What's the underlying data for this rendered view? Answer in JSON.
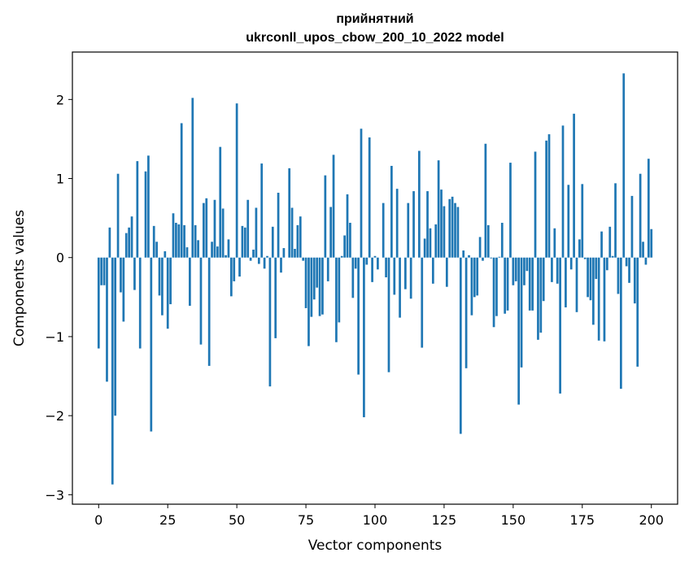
{
  "chart_data": {
    "type": "bar",
    "title_line1": "прийнятний",
    "title_line2": "ukrconll_upos_cbow_200_10_2022 model",
    "xlabel": "Vector components",
    "ylabel": "Components values",
    "xlim": [
      -9.5,
      209.5
    ],
    "ylim": [
      -3.12,
      2.6
    ],
    "xticks": [
      0,
      25,
      50,
      75,
      100,
      125,
      150,
      175,
      200
    ],
    "xtick_labels": [
      "0",
      "25",
      "50",
      "75",
      "100",
      "125",
      "150",
      "175",
      "200"
    ],
    "yticks": [
      -3,
      -2,
      -1,
      0,
      1,
      2
    ],
    "ytick_labels": [
      "−3",
      "−2",
      "−1",
      "0",
      "1",
      "2"
    ],
    "bar_color": "#1f77b4",
    "grid": false,
    "values": [
      -1.15,
      -0.35,
      -0.35,
      -1.57,
      0.38,
      -2.87,
      -2.0,
      1.06,
      -0.44,
      -0.81,
      0.31,
      0.38,
      0.52,
      -0.41,
      1.22,
      -1.15,
      0.0,
      1.09,
      1.29,
      -2.2,
      0.4,
      0.2,
      -0.48,
      -0.73,
      0.08,
      -0.9,
      -0.59,
      0.56,
      0.44,
      0.42,
      1.7,
      0.41,
      0.13,
      -0.61,
      2.02,
      0.41,
      0.22,
      -1.1,
      0.69,
      0.75,
      -1.37,
      0.2,
      0.73,
      0.14,
      1.4,
      0.62,
      0.03,
      0.23,
      -0.49,
      -0.3,
      1.95,
      -0.24,
      0.4,
      0.38,
      0.73,
      -0.04,
      0.1,
      0.63,
      -0.08,
      1.19,
      -0.14,
      0.02,
      -1.63,
      0.39,
      -1.02,
      0.82,
      -0.19,
      0.12,
      0.0,
      1.13,
      0.63,
      0.11,
      0.41,
      0.52,
      -0.04,
      -0.64,
      -1.12,
      -0.75,
      -0.53,
      -0.38,
      -0.74,
      -0.72,
      1.04,
      -0.3,
      0.64,
      1.3,
      -1.07,
      -0.82,
      0.02,
      0.28,
      0.8,
      0.44,
      -0.51,
      -0.14,
      -1.48,
      1.63,
      -2.02,
      -0.09,
      1.52,
      -0.31,
      0.02,
      -0.15,
      0.0,
      0.69,
      -0.25,
      -1.45,
      1.16,
      -0.47,
      0.87,
      -0.76,
      0.0,
      -0.4,
      0.69,
      -0.52,
      0.84,
      0.0,
      1.35,
      -1.14,
      0.24,
      0.84,
      0.37,
      -0.33,
      0.42,
      1.23,
      0.86,
      0.65,
      -0.37,
      0.74,
      0.77,
      0.69,
      0.64,
      -2.23,
      0.09,
      -1.4,
      0.03,
      -0.73,
      -0.5,
      -0.48,
      0.26,
      -0.04,
      1.44,
      0.41,
      -0.01,
      -0.88,
      -0.74,
      0.01,
      0.44,
      -0.71,
      -0.67,
      1.2,
      -0.35,
      -0.3,
      -1.86,
      -1.39,
      -0.35,
      -0.17,
      -0.67,
      -0.67,
      1.34,
      -1.04,
      -0.95,
      -0.55,
      1.48,
      1.56,
      -0.31,
      0.37,
      -0.33,
      -1.72,
      1.67,
      -0.63,
      0.92,
      -0.15,
      1.82,
      -0.69,
      0.23,
      0.93,
      -0.02,
      -0.5,
      -0.54,
      -0.85,
      -0.27,
      -1.05,
      0.33,
      -1.06,
      -0.16,
      0.39,
      0.02,
      0.94,
      -0.46,
      -1.66,
      2.33,
      -0.11,
      -0.32,
      0.78,
      -0.58,
      -1.38,
      1.06,
      0.2,
      -0.09,
      1.25,
      0.36
    ]
  }
}
